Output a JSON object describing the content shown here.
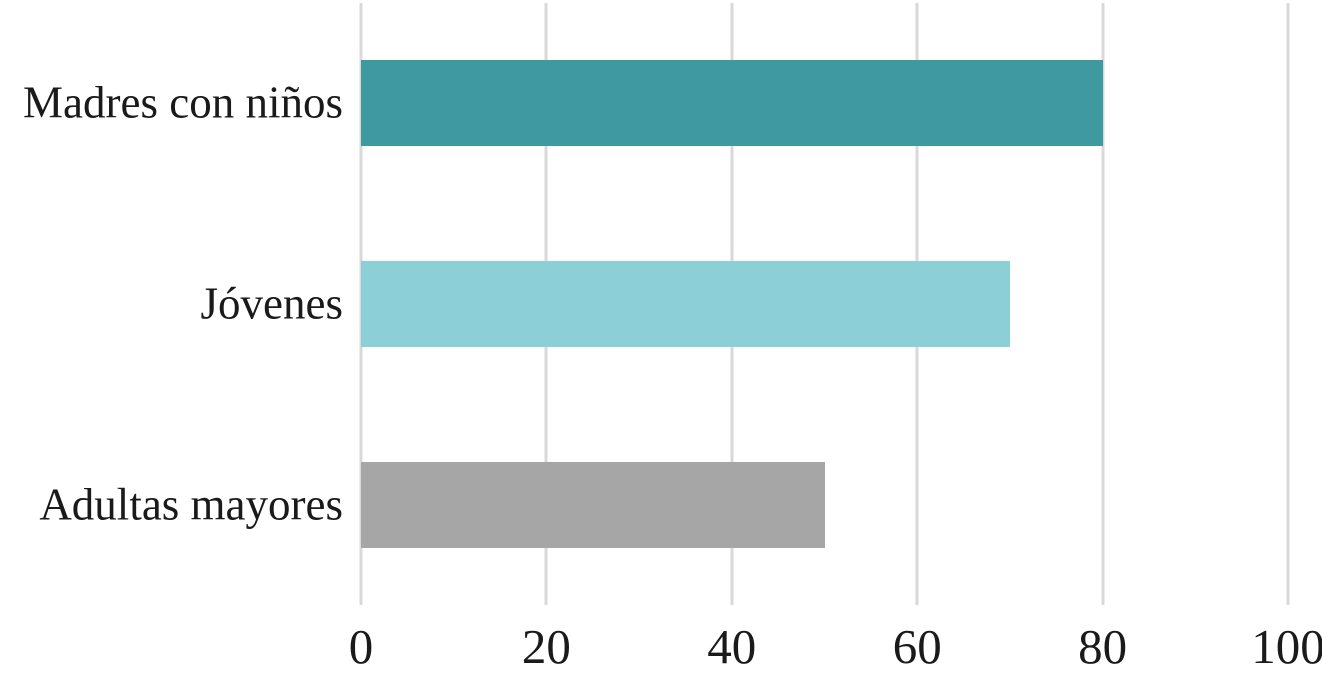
{
  "chart_data": {
    "type": "bar",
    "orientation": "horizontal",
    "title": "",
    "categories": [
      "Madres con niños",
      "Jóvenes",
      "Adultas mayores"
    ],
    "values": [
      80,
      70,
      50
    ],
    "bar_colors": [
      "#3E9AA0",
      "#8CCFD7",
      "#A6A6A6"
    ],
    "xlabel": "",
    "ylabel": "",
    "xlim": [
      0,
      100
    ],
    "xticks": [
      0,
      20,
      40,
      60,
      80,
      100
    ],
    "grid": "vertical",
    "gridline_color": "#D9D9D9",
    "text_color": "#1A1A1A",
    "background": "#FFFFFF",
    "legend": "none"
  }
}
